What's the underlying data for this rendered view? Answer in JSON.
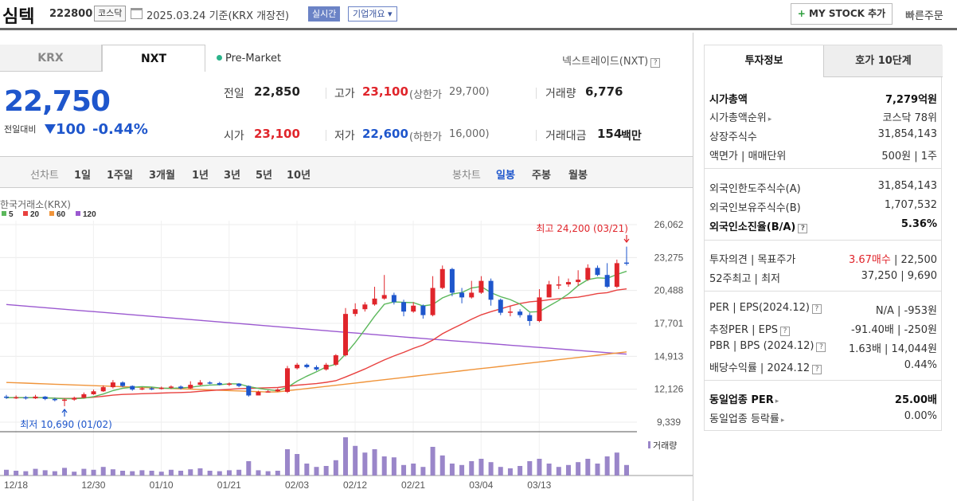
{
  "header": {
    "name": "심텍",
    "code": "222800",
    "market": "코스닥",
    "date": "2025.03.24 기준(KRX 개장전)",
    "realtime": "실시간",
    "company": "기업개요 ▾",
    "mystock": "MY STOCK 추가",
    "mystock_plus": "+",
    "quick": "빠른주문"
  },
  "tabs": {
    "krx": "KRX",
    "nxt": "NXT",
    "premarket": "Pre-Market",
    "nextrade": "넥스트레이드(NXT)"
  },
  "quote": {
    "price": "22,750",
    "change_label": "전일대비",
    "change": "100",
    "change_pct": "-0.44%",
    "prev_label": "전일",
    "prev": "22,850",
    "high_label": "고가",
    "high": "23,100",
    "upper_label": "(상한가",
    "upper": "29,700)",
    "vol_label": "거래량",
    "vol": "6,776",
    "open_label": "시가",
    "open": "23,100",
    "low_label": "저가",
    "low": "22,600",
    "lower_label": "(하한가",
    "lower": "16,000)",
    "amt_label": "거래대금",
    "amt": "154",
    "amt_unit": "백만"
  },
  "period": {
    "line_label": "선차트",
    "items": [
      "1일",
      "1주일",
      "3개월",
      "1년",
      "3년",
      "5년",
      "10년"
    ],
    "candle_label": "봉차트",
    "candle_items": [
      "일봉",
      "주봉",
      "월봉"
    ],
    "selected": "일봉"
  },
  "chart_data": {
    "type": "candlestick",
    "exchange": "한국거래소(KRX)",
    "ma_legend": [
      {
        "name": "5",
        "color": "#5cb85c"
      },
      {
        "name": "20",
        "color": "#e8413f"
      },
      {
        "name": "60",
        "color": "#f0943a"
      },
      {
        "name": "120",
        "color": "#9b59d0"
      }
    ],
    "y_ticks": [
      "26,062",
      "23,275",
      "20,488",
      "17,701",
      "14,913",
      "12,126",
      "9,339"
    ],
    "ylim": [
      9339,
      26062
    ],
    "x_ticks": [
      "12/18",
      "12/30",
      "01/10",
      "01/21",
      "02/03",
      "02/12",
      "02/21",
      "03/04",
      "03/13"
    ],
    "high_label": "최고 24,200 (03/21)",
    "low_label": "최저 10,690 (01/02)",
    "volume_label": "거래량",
    "up_color": "#e0252b",
    "down_color": "#1e56cc",
    "candles": [
      [
        11500,
        11400,
        11650,
        11300
      ],
      [
        11400,
        11450,
        11600,
        11300
      ],
      [
        11450,
        11350,
        11550,
        11250
      ],
      [
        11350,
        11500,
        11650,
        11300
      ],
      [
        11500,
        11300,
        11550,
        11200
      ],
      [
        11300,
        11200,
        11400,
        11100
      ],
      [
        11200,
        11250,
        11350,
        10690
      ],
      [
        11250,
        11400,
        11500,
        11150
      ],
      [
        11400,
        11700,
        11850,
        11350
      ],
      [
        11700,
        11950,
        12100,
        11650
      ],
      [
        11950,
        12300,
        12450,
        11900
      ],
      [
        12300,
        12700,
        12900,
        12200
      ],
      [
        12700,
        12400,
        12800,
        12300
      ],
      [
        12400,
        12100,
        12450,
        12000
      ],
      [
        12100,
        12200,
        12300,
        12050
      ],
      [
        12200,
        12150,
        12300,
        12050
      ],
      [
        12150,
        12250,
        12350,
        12100
      ],
      [
        12250,
        12350,
        12450,
        12150
      ],
      [
        12350,
        12200,
        12450,
        12100
      ],
      [
        12200,
        12500,
        12800,
        12150
      ],
      [
        12500,
        12700,
        12900,
        12450
      ],
      [
        12700,
        12650,
        12800,
        12550
      ],
      [
        12650,
        12500,
        12750,
        12450
      ],
      [
        12500,
        12600,
        12700,
        12400
      ],
      [
        12600,
        12400,
        12650,
        12300
      ],
      [
        12400,
        11600,
        12450,
        11500
      ],
      [
        11600,
        11900,
        12000,
        11700
      ],
      [
        11900,
        11950,
        12050,
        11850
      ],
      [
        11950,
        12100,
        12200,
        11900
      ],
      [
        11900,
        13900,
        14100,
        11800
      ],
      [
        13900,
        14200,
        14350,
        13800
      ],
      [
        14200,
        14000,
        14300,
        13900
      ],
      [
        14000,
        13800,
        14150,
        13700
      ],
      [
        13800,
        14200,
        14350,
        13700
      ],
      [
        14200,
        15000,
        15100,
        14100
      ],
      [
        15000,
        18500,
        19000,
        14900
      ],
      [
        18500,
        18900,
        19400,
        18300
      ],
      [
        18900,
        19300,
        19500,
        18700
      ],
      [
        19300,
        19800,
        20800,
        19200
      ],
      [
        19800,
        20100,
        21800,
        19700
      ],
      [
        20100,
        19500,
        20300,
        19300
      ],
      [
        19500,
        18700,
        19700,
        18300
      ],
      [
        18700,
        19200,
        19500,
        18600
      ],
      [
        19200,
        18400,
        19300,
        18100
      ],
      [
        18400,
        20700,
        21700,
        18300
      ],
      [
        20700,
        22300,
        22600,
        20600
      ],
      [
        22300,
        20300,
        22400,
        20000
      ],
      [
        20300,
        19900,
        20700,
        19400
      ],
      [
        19900,
        20300,
        21300,
        19800
      ],
      [
        20300,
        21300,
        21700,
        20200
      ],
      [
        21300,
        19700,
        21500,
        19200
      ],
      [
        19700,
        18600,
        19800,
        18400
      ],
      [
        18600,
        18700,
        19200,
        18300
      ],
      [
        18700,
        18400,
        18900,
        18200
      ],
      [
        18400,
        17900,
        18600,
        17500
      ],
      [
        17900,
        19900,
        20600,
        17800
      ],
      [
        19900,
        21000,
        21300,
        19900
      ],
      [
        21000,
        21000,
        21700,
        20600
      ],
      [
        21000,
        21200,
        21500,
        20800
      ],
      [
        21200,
        21400,
        22200,
        20900
      ],
      [
        21400,
        22400,
        22700,
        21300
      ],
      [
        22400,
        21800,
        22600,
        21700
      ],
      [
        21800,
        20800,
        22800,
        20700
      ],
      [
        20800,
        22800,
        23100,
        20700
      ],
      [
        22850,
        22750,
        24200,
        22600
      ]
    ],
    "volumes": [
      12,
      10,
      9,
      14,
      11,
      9,
      16,
      8,
      14,
      12,
      18,
      13,
      10,
      9,
      11,
      10,
      8,
      12,
      10,
      13,
      15,
      10,
      9,
      11,
      12,
      30,
      11,
      9,
      10,
      55,
      45,
      25,
      18,
      20,
      32,
      80,
      62,
      48,
      55,
      40,
      38,
      22,
      25,
      18,
      60,
      42,
      25,
      22,
      30,
      35,
      28,
      18,
      15,
      20,
      30,
      35,
      25,
      18,
      22,
      28,
      35,
      25,
      40,
      48,
      22
    ]
  },
  "right": {
    "tab1": "투자정보",
    "tab2": "호가 10단계",
    "rows": [
      {
        "l": "시가총액",
        "r": "7,279억원"
      },
      {
        "l": "시가총액순위",
        "r": "코스닥 78위"
      },
      {
        "l": "상장주식수",
        "r": "31,854,143"
      },
      {
        "l": "액면가 | 매매단위",
        "r": "500원 | 1주"
      },
      {
        "l": "외국인한도주식수(A)",
        "r": "31,854,143"
      },
      {
        "l": "외국인보유주식수(B)",
        "r": "1,707,532"
      },
      {
        "l": "외국인소진율(B/A)",
        "r": "5.36%"
      },
      {
        "l": "투자의견 | 목표주가",
        "r1": "3.67매수",
        "r2": " | 22,500"
      },
      {
        "l": "52주최고 | 최저",
        "r": "37,250 | 9,690"
      },
      {
        "l": "PER | EPS(2024.12)",
        "r": "N/A | -953원"
      },
      {
        "l": "추정PER | EPS",
        "r": "-91.40배 | -250원"
      },
      {
        "l": "PBR | BPS (2024.12)",
        "r": "1.63배 | 14,044원"
      },
      {
        "l": "배당수익률 | 2024.12",
        "r": "0.44%"
      },
      {
        "l": "동일업종 PER",
        "r": "25.00배"
      },
      {
        "l": "동일업종 등락률",
        "r": "0.00%"
      }
    ]
  }
}
